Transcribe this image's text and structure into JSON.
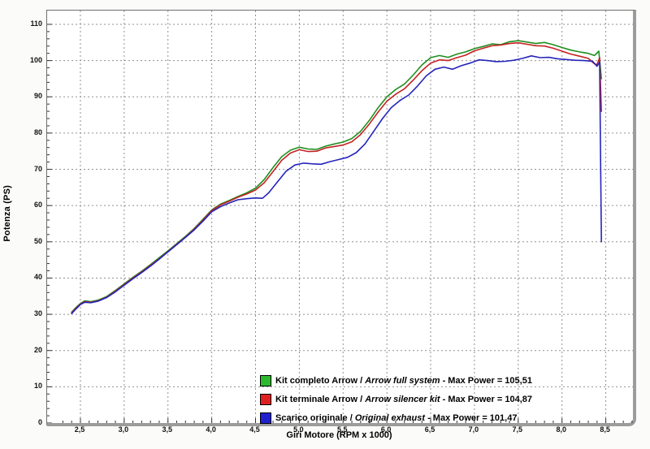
{
  "chart_data": {
    "type": "line",
    "title": "",
    "xlabel": "Giri Motore (RPM x 1000)",
    "ylabel": "Potenza (PS)",
    "xlim": [
      2.12,
      8.81
    ],
    "ylim": [
      0,
      113.8
    ],
    "grid": true,
    "grid_style": "dashed",
    "legend_position": "inside-bottom-center",
    "x_ticks": {
      "values": [
        2.5,
        3.0,
        3.5,
        4.0,
        4.5,
        5.0,
        5.5,
        6.0,
        6.5,
        7.0,
        7.5,
        8.0,
        8.5
      ],
      "labels": [
        "2,5",
        "3,0",
        "3,5",
        "4,0",
        "4,5",
        "5,0",
        "5,5",
        "6,0",
        "6,5",
        "7,0",
        "7,5",
        "8,0",
        "8,5"
      ],
      "minor_step": 0.1
    },
    "y_ticks": {
      "values": [
        0,
        10,
        20,
        30,
        40,
        50,
        60,
        70,
        80,
        90,
        100,
        110
      ],
      "labels": [
        "0",
        "10",
        "20",
        "30",
        "40",
        "50",
        "60",
        "70",
        "80",
        "90",
        "100",
        "110"
      ],
      "minor_step": 2
    },
    "colors": {
      "grid": "#909090",
      "axis": "#6e6e6e",
      "tick": "#333333"
    },
    "legend_separator": "/",
    "max_power_label": "Max Power",
    "series": [
      {
        "id": "kit-completo-arrow",
        "name_it": "Kit completo Arrow",
        "name_en": "Arrow full system",
        "max_power": "105,51",
        "color": "#1f8f1f",
        "swatch_color": "#2eb82e",
        "points": [
          [
            2.4,
            30.6
          ],
          [
            2.45,
            31.9
          ],
          [
            2.5,
            33.0
          ],
          [
            2.55,
            33.7
          ],
          [
            2.62,
            33.5
          ],
          [
            2.7,
            33.9
          ],
          [
            2.8,
            34.9
          ],
          [
            2.9,
            36.6
          ],
          [
            3.0,
            38.4
          ],
          [
            3.1,
            40.2
          ],
          [
            3.2,
            41.9
          ],
          [
            3.3,
            43.7
          ],
          [
            3.4,
            45.6
          ],
          [
            3.5,
            47.5
          ],
          [
            3.6,
            49.5
          ],
          [
            3.7,
            51.5
          ],
          [
            3.8,
            53.7
          ],
          [
            3.9,
            56.2
          ],
          [
            4.0,
            58.8
          ],
          [
            4.1,
            60.4
          ],
          [
            4.2,
            61.4
          ],
          [
            4.3,
            62.5
          ],
          [
            4.4,
            63.5
          ],
          [
            4.5,
            64.8
          ],
          [
            4.6,
            67.2
          ],
          [
            4.7,
            70.5
          ],
          [
            4.8,
            73.5
          ],
          [
            4.9,
            75.3
          ],
          [
            5.0,
            76.1
          ],
          [
            5.1,
            75.6
          ],
          [
            5.2,
            75.5
          ],
          [
            5.3,
            76.4
          ],
          [
            5.4,
            77.0
          ],
          [
            5.5,
            77.5
          ],
          [
            5.6,
            78.5
          ],
          [
            5.7,
            80.5
          ],
          [
            5.8,
            83.5
          ],
          [
            5.9,
            87.0
          ],
          [
            6.0,
            90.0
          ],
          [
            6.1,
            92.0
          ],
          [
            6.2,
            93.5
          ],
          [
            6.3,
            96.0
          ],
          [
            6.4,
            98.8
          ],
          [
            6.5,
            100.8
          ],
          [
            6.6,
            101.4
          ],
          [
            6.7,
            100.9
          ],
          [
            6.8,
            101.8
          ],
          [
            6.9,
            102.4
          ],
          [
            7.0,
            103.3
          ],
          [
            7.1,
            103.9
          ],
          [
            7.2,
            104.6
          ],
          [
            7.3,
            104.4
          ],
          [
            7.4,
            105.2
          ],
          [
            7.5,
            105.5
          ],
          [
            7.6,
            105.1
          ],
          [
            7.7,
            104.7
          ],
          [
            7.8,
            105.0
          ],
          [
            7.9,
            104.4
          ],
          [
            8.0,
            103.6
          ],
          [
            8.1,
            102.9
          ],
          [
            8.2,
            102.4
          ],
          [
            8.3,
            102.0
          ],
          [
            8.37,
            101.4
          ],
          [
            8.42,
            102.6
          ],
          [
            8.45,
            95.0
          ]
        ]
      },
      {
        "id": "kit-terminale-arrow",
        "name_it": "Kit terminale Arrow",
        "name_en": "Arrow silencer kit",
        "max_power": "104,87",
        "color": "#c42222",
        "swatch_color": "#e02020",
        "points": [
          [
            2.4,
            30.4
          ],
          [
            2.45,
            31.7
          ],
          [
            2.5,
            32.8
          ],
          [
            2.55,
            33.5
          ],
          [
            2.62,
            33.3
          ],
          [
            2.7,
            33.7
          ],
          [
            2.8,
            34.7
          ],
          [
            2.9,
            36.4
          ],
          [
            3.0,
            38.2
          ],
          [
            3.1,
            40.0
          ],
          [
            3.2,
            41.7
          ],
          [
            3.3,
            43.5
          ],
          [
            3.4,
            45.3
          ],
          [
            3.5,
            47.3
          ],
          [
            3.6,
            49.3
          ],
          [
            3.7,
            51.3
          ],
          [
            3.8,
            53.5
          ],
          [
            3.9,
            56.0
          ],
          [
            4.0,
            58.6
          ],
          [
            4.1,
            60.2
          ],
          [
            4.2,
            61.2
          ],
          [
            4.3,
            62.3
          ],
          [
            4.4,
            63.2
          ],
          [
            4.5,
            64.3
          ],
          [
            4.6,
            66.3
          ],
          [
            4.7,
            69.4
          ],
          [
            4.8,
            72.5
          ],
          [
            4.9,
            74.5
          ],
          [
            5.0,
            75.4
          ],
          [
            5.1,
            74.9
          ],
          [
            5.2,
            75.0
          ],
          [
            5.3,
            75.9
          ],
          [
            5.4,
            76.3
          ],
          [
            5.5,
            76.7
          ],
          [
            5.6,
            77.6
          ],
          [
            5.7,
            79.6
          ],
          [
            5.8,
            82.5
          ],
          [
            5.9,
            85.8
          ],
          [
            6.0,
            88.8
          ],
          [
            6.1,
            90.7
          ],
          [
            6.2,
            92.2
          ],
          [
            6.3,
            94.6
          ],
          [
            6.4,
            97.2
          ],
          [
            6.5,
            99.3
          ],
          [
            6.6,
            100.2
          ],
          [
            6.7,
            100.0
          ],
          [
            6.8,
            100.8
          ],
          [
            6.9,
            101.5
          ],
          [
            7.0,
            102.7
          ],
          [
            7.1,
            103.4
          ],
          [
            7.2,
            104.1
          ],
          [
            7.3,
            104.3
          ],
          [
            7.4,
            104.7
          ],
          [
            7.5,
            104.9
          ],
          [
            7.6,
            104.5
          ],
          [
            7.7,
            104.1
          ],
          [
            7.8,
            104.0
          ],
          [
            7.9,
            103.4
          ],
          [
            8.0,
            102.6
          ],
          [
            8.1,
            101.8
          ],
          [
            8.2,
            101.2
          ],
          [
            8.3,
            100.6
          ],
          [
            8.37,
            99.1
          ],
          [
            8.4,
            98.9
          ],
          [
            8.43,
            100.8
          ],
          [
            8.45,
            86.0
          ]
        ]
      },
      {
        "id": "scarico-originale",
        "name_it": "Scarico originale",
        "name_en": "Original exhaust",
        "max_power": "101,47",
        "color": "#2424bc",
        "swatch_color": "#2020d0",
        "points": [
          [
            2.4,
            30.2
          ],
          [
            2.45,
            31.5
          ],
          [
            2.5,
            32.7
          ],
          [
            2.55,
            33.3
          ],
          [
            2.62,
            33.2
          ],
          [
            2.7,
            33.6
          ],
          [
            2.8,
            34.6
          ],
          [
            2.9,
            36.2
          ],
          [
            3.0,
            38.0
          ],
          [
            3.1,
            39.8
          ],
          [
            3.2,
            41.5
          ],
          [
            3.3,
            43.3
          ],
          [
            3.4,
            45.2
          ],
          [
            3.5,
            47.2
          ],
          [
            3.6,
            49.2
          ],
          [
            3.7,
            51.2
          ],
          [
            3.8,
            53.3
          ],
          [
            3.9,
            55.7
          ],
          [
            4.0,
            58.3
          ],
          [
            4.1,
            59.7
          ],
          [
            4.2,
            60.7
          ],
          [
            4.3,
            61.6
          ],
          [
            4.4,
            61.9
          ],
          [
            4.5,
            62.1
          ],
          [
            4.58,
            62.0
          ],
          [
            4.65,
            63.5
          ],
          [
            4.75,
            66.5
          ],
          [
            4.85,
            69.5
          ],
          [
            4.95,
            71.2
          ],
          [
            5.05,
            71.7
          ],
          [
            5.15,
            71.5
          ],
          [
            5.25,
            71.4
          ],
          [
            5.35,
            72.1
          ],
          [
            5.45,
            72.7
          ],
          [
            5.55,
            73.3
          ],
          [
            5.65,
            74.6
          ],
          [
            5.75,
            77.0
          ],
          [
            5.85,
            80.5
          ],
          [
            5.95,
            84.0
          ],
          [
            6.05,
            87.0
          ],
          [
            6.15,
            89.0
          ],
          [
            6.25,
            90.5
          ],
          [
            6.35,
            93.0
          ],
          [
            6.45,
            95.8
          ],
          [
            6.55,
            97.6
          ],
          [
            6.65,
            98.2
          ],
          [
            6.75,
            97.6
          ],
          [
            6.85,
            98.6
          ],
          [
            6.95,
            99.3
          ],
          [
            7.05,
            100.2
          ],
          [
            7.15,
            100.0
          ],
          [
            7.25,
            99.7
          ],
          [
            7.35,
            99.8
          ],
          [
            7.45,
            100.1
          ],
          [
            7.55,
            100.6
          ],
          [
            7.65,
            101.3
          ],
          [
            7.75,
            100.8
          ],
          [
            7.85,
            100.9
          ],
          [
            7.95,
            100.5
          ],
          [
            8.05,
            100.3
          ],
          [
            8.15,
            100.1
          ],
          [
            8.25,
            100.0
          ],
          [
            8.35,
            99.8
          ],
          [
            8.4,
            98.4
          ],
          [
            8.43,
            99.6
          ],
          [
            8.45,
            50.0
          ]
        ]
      }
    ]
  }
}
